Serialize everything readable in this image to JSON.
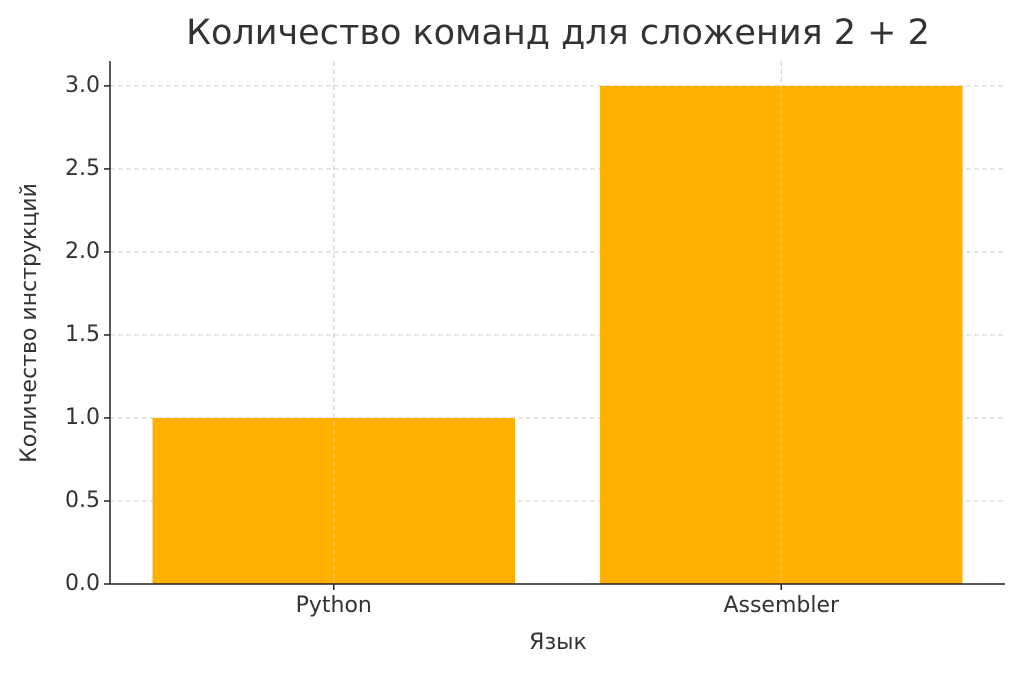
{
  "chart_data": {
    "type": "bar",
    "title": "Количество команд для сложения 2 + 2",
    "x_label": "Язык",
    "y_label": "Количество инструкций",
    "categories": [
      "Python",
      "Assembler"
    ],
    "values": [
      1,
      3
    ],
    "color": "#ffb000",
    "ylim": [
      0,
      3.15
    ],
    "yticks": [
      {
        "value": 0,
        "label": "0.0"
      },
      0.5,
      {
        "value": 1,
        "label": "1.0"
      },
      1.5,
      {
        "value": 2,
        "label": "2.0"
      },
      2.5,
      {
        "value": 3,
        "label": "3.0"
      }
    ],
    "grid": true
  }
}
